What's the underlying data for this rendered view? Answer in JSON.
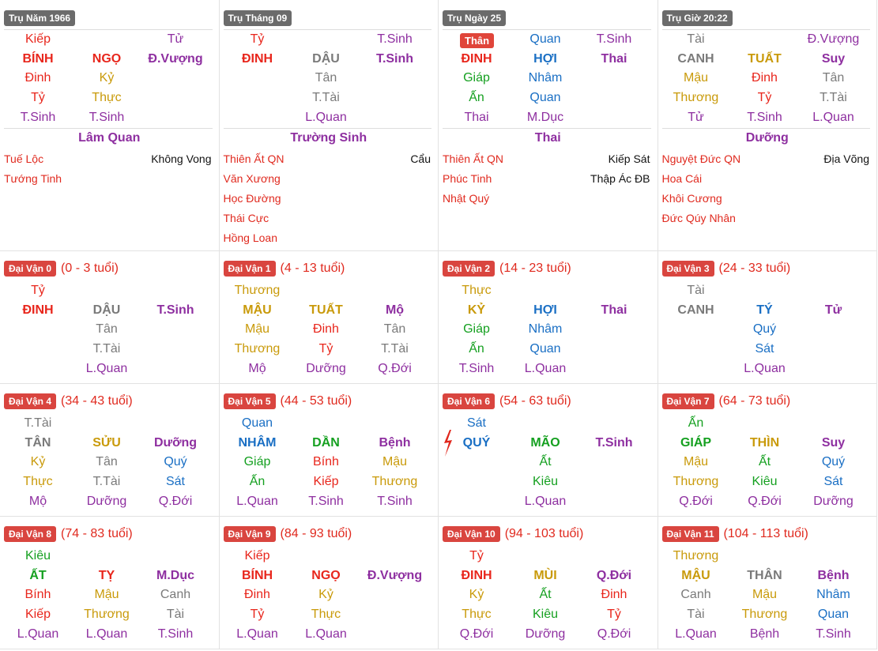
{
  "pillars": [
    {
      "badge": "Trụ Năm 1966",
      "rows": [
        [
          [
            "Kiếp",
            "#e8261c"
          ],
          null,
          [
            "Tử",
            "#8e2fa0"
          ]
        ],
        [
          [
            "BÍNH",
            "#e8261c"
          ],
          [
            "NGỌ",
            "#e8261c"
          ],
          [
            "Đ.Vượng",
            "#8e2fa0"
          ]
        ],
        [
          [
            "Đinh",
            "#e8261c"
          ],
          [
            "Kỷ",
            "#c99a0a"
          ],
          null
        ],
        [
          [
            "Tỷ",
            "#e8261c"
          ],
          [
            "Thực",
            "#c99a0a"
          ],
          null
        ],
        [
          [
            "T.Sinh",
            "#8e2fa0"
          ],
          [
            "T.Sinh",
            "#8e2fa0"
          ],
          null
        ]
      ],
      "center": "Lâm Quan",
      "stars_left": [
        "Tuế Lộc",
        "Tướng Tinh"
      ],
      "stars_right": [
        "Không Vong"
      ]
    },
    {
      "badge": "Trụ Tháng 09",
      "rows": [
        [
          [
            "Tỷ",
            "#e8261c"
          ],
          null,
          [
            "T.Sinh",
            "#8e2fa0"
          ]
        ],
        [
          [
            "ĐINH",
            "#e8261c"
          ],
          [
            "DẬU",
            "#7a7a7a"
          ],
          [
            "T.Sinh",
            "#8e2fa0"
          ]
        ],
        [
          null,
          [
            "Tân",
            "#7a7a7a"
          ],
          null
        ],
        [
          null,
          [
            "T.Tài",
            "#7a7a7a"
          ],
          null
        ],
        [
          null,
          [
            "L.Quan",
            "#8e2fa0"
          ],
          null
        ]
      ],
      "center": "Trường Sinh",
      "stars_left": [
        "Thiên Ất QN",
        "Văn Xương",
        "Học Đường",
        "Thái Cực",
        "Hồng Loan"
      ],
      "stars_right": [
        "Cẩu"
      ]
    },
    {
      "badge": "Trụ Ngày 25",
      "day_badge": "Thân",
      "rows": [
        [
          null,
          [
            "Quan",
            "#1a6fc4"
          ],
          [
            "T.Sinh",
            "#8e2fa0"
          ]
        ],
        [
          [
            "ĐINH",
            "#e8261c"
          ],
          [
            "HỢI",
            "#1a6fc4"
          ],
          [
            "Thai",
            "#8e2fa0"
          ]
        ],
        [
          [
            "Giáp",
            "#15a020"
          ],
          [
            "Nhâm",
            "#1a6fc4"
          ],
          null
        ],
        [
          [
            "Ấn",
            "#15a020"
          ],
          [
            "Quan",
            "#1a6fc4"
          ],
          null
        ],
        [
          [
            "Thai",
            "#8e2fa0"
          ],
          [
            "M.Dục",
            "#8e2fa0"
          ],
          null
        ]
      ],
      "center": "Thai",
      "stars_left": [
        "Thiên Ất QN",
        "Phúc Tinh",
        "Nhật Quý"
      ],
      "stars_right": [
        "Kiếp Sát",
        "Thập Ác ĐB"
      ]
    },
    {
      "badge": "Trụ Giờ 20:22",
      "rows": [
        [
          [
            "Tài",
            "#7a7a7a"
          ],
          null,
          [
            "Đ.Vượng",
            "#8e2fa0"
          ]
        ],
        [
          [
            "CANH",
            "#7a7a7a"
          ],
          [
            "TUẤT",
            "#c99a0a"
          ],
          [
            "Suy",
            "#8e2fa0"
          ]
        ],
        [
          [
            "Mậu",
            "#c99a0a"
          ],
          [
            "Đinh",
            "#e8261c"
          ],
          [
            "Tân",
            "#7a7a7a"
          ]
        ],
        [
          [
            "Thương",
            "#c99a0a"
          ],
          [
            "Tỷ",
            "#e8261c"
          ],
          [
            "T.Tài",
            "#7a7a7a"
          ]
        ],
        [
          [
            "Tử",
            "#8e2fa0"
          ],
          [
            "T.Sinh",
            "#8e2fa0"
          ],
          [
            "L.Quan",
            "#8e2fa0"
          ]
        ]
      ],
      "center": "Dưỡng",
      "stars_left": [
        "Nguyệt Đức QN",
        "Hoa Cái",
        "Khôi Cương",
        "Đức Qúy Nhân"
      ],
      "stars_right": [
        "Địa Võng"
      ]
    }
  ],
  "dai_van": [
    {
      "badge": "Đại Vận 0",
      "age": "(0 - 3 tuổi)",
      "rows": [
        [
          [
            "Tỷ",
            "#e8261c"
          ],
          null,
          null
        ],
        [
          [
            "ĐINH",
            "#e8261c"
          ],
          [
            "DẬU",
            "#7a7a7a"
          ],
          [
            "T.Sinh",
            "#8e2fa0"
          ]
        ],
        [
          null,
          [
            "Tân",
            "#7a7a7a"
          ],
          null
        ],
        [
          null,
          [
            "T.Tài",
            "#7a7a7a"
          ],
          null
        ],
        [
          null,
          [
            "L.Quan",
            "#8e2fa0"
          ],
          null
        ]
      ]
    },
    {
      "badge": "Đại Vận 1",
      "age": "(4 - 13 tuổi)",
      "rows": [
        [
          [
            "Thương",
            "#c99a0a"
          ],
          null,
          null
        ],
        [
          [
            "MẬU",
            "#c99a0a"
          ],
          [
            "TUẤT",
            "#c99a0a"
          ],
          [
            "Mộ",
            "#8e2fa0"
          ]
        ],
        [
          [
            "Mậu",
            "#c99a0a"
          ],
          [
            "Đinh",
            "#e8261c"
          ],
          [
            "Tân",
            "#7a7a7a"
          ]
        ],
        [
          [
            "Thương",
            "#c99a0a"
          ],
          [
            "Tỷ",
            "#e8261c"
          ],
          [
            "T.Tài",
            "#7a7a7a"
          ]
        ],
        [
          [
            "Mộ",
            "#8e2fa0"
          ],
          [
            "Dưỡng",
            "#8e2fa0"
          ],
          [
            "Q.Đới",
            "#8e2fa0"
          ]
        ]
      ]
    },
    {
      "badge": "Đại Vận 2",
      "age": "(14 - 23 tuổi)",
      "rows": [
        [
          [
            "Thực",
            "#c99a0a"
          ],
          null,
          null
        ],
        [
          [
            "KỶ",
            "#c99a0a"
          ],
          [
            "HỢI",
            "#1a6fc4"
          ],
          [
            "Thai",
            "#8e2fa0"
          ]
        ],
        [
          [
            "Giáp",
            "#15a020"
          ],
          [
            "Nhâm",
            "#1a6fc4"
          ],
          null
        ],
        [
          [
            "Ấn",
            "#15a020"
          ],
          [
            "Quan",
            "#1a6fc4"
          ],
          null
        ],
        [
          [
            "T.Sinh",
            "#8e2fa0"
          ],
          [
            "L.Quan",
            "#8e2fa0"
          ],
          null
        ]
      ]
    },
    {
      "badge": "Đại Vận 3",
      "age": "(24 - 33 tuổi)",
      "rows": [
        [
          [
            "Tài",
            "#7a7a7a"
          ],
          null,
          null
        ],
        [
          [
            "CANH",
            "#7a7a7a"
          ],
          [
            "TÝ",
            "#1a6fc4"
          ],
          [
            "Tử",
            "#8e2fa0"
          ]
        ],
        [
          null,
          [
            "Quý",
            "#1a6fc4"
          ],
          null
        ],
        [
          null,
          [
            "Sát",
            "#1a6fc4"
          ],
          null
        ],
        [
          null,
          [
            "L.Quan",
            "#8e2fa0"
          ],
          null
        ]
      ]
    },
    {
      "badge": "Đại Vận 4",
      "age": "(34 - 43 tuổi)",
      "rows": [
        [
          [
            "T.Tài",
            "#7a7a7a"
          ],
          null,
          null
        ],
        [
          [
            "TÂN",
            "#7a7a7a"
          ],
          [
            "SỬU",
            "#c99a0a"
          ],
          [
            "Dưỡng",
            "#8e2fa0"
          ]
        ],
        [
          [
            "Kỷ",
            "#c99a0a"
          ],
          [
            "Tân",
            "#7a7a7a"
          ],
          [
            "Quý",
            "#1a6fc4"
          ]
        ],
        [
          [
            "Thực",
            "#c99a0a"
          ],
          [
            "T.Tài",
            "#7a7a7a"
          ],
          [
            "Sát",
            "#1a6fc4"
          ]
        ],
        [
          [
            "Mộ",
            "#8e2fa0"
          ],
          [
            "Dưỡng",
            "#8e2fa0"
          ],
          [
            "Q.Đới",
            "#8e2fa0"
          ]
        ]
      ]
    },
    {
      "badge": "Đại Vận 5",
      "age": "(44 - 53 tuổi)",
      "rows": [
        [
          [
            "Quan",
            "#1a6fc4"
          ],
          null,
          null
        ],
        [
          [
            "NHÂM",
            "#1a6fc4"
          ],
          [
            "DẦN",
            "#15a020"
          ],
          [
            "Bệnh",
            "#8e2fa0"
          ]
        ],
        [
          [
            "Giáp",
            "#15a020"
          ],
          [
            "Bính",
            "#e8261c"
          ],
          [
            "Mậu",
            "#c99a0a"
          ]
        ],
        [
          [
            "Ấn",
            "#15a020"
          ],
          [
            "Kiếp",
            "#e8261c"
          ],
          [
            "Thương",
            "#c99a0a"
          ]
        ],
        [
          [
            "L.Quan",
            "#8e2fa0"
          ],
          [
            "T.Sinh",
            "#8e2fa0"
          ],
          [
            "T.Sinh",
            "#8e2fa0"
          ]
        ]
      ]
    },
    {
      "badge": "Đại Vận 6",
      "age": "(54 - 63 tuổi)",
      "rows": [
        [
          [
            "Sát",
            "#1a6fc4"
          ],
          null,
          null
        ],
        [
          [
            "QUÝ",
            "#1a6fc4"
          ],
          [
            "MÃO",
            "#15a020"
          ],
          [
            "T.Sinh",
            "#8e2fa0"
          ]
        ],
        [
          null,
          [
            "Ất",
            "#15a020"
          ],
          null
        ],
        [
          null,
          [
            "Kiêu",
            "#15a020"
          ],
          null
        ],
        [
          null,
          [
            "L.Quan",
            "#8e2fa0"
          ],
          null
        ]
      ]
    },
    {
      "badge": "Đại Vận 7",
      "age": "(64 - 73 tuổi)",
      "rows": [
        [
          [
            "Ấn",
            "#15a020"
          ],
          null,
          null
        ],
        [
          [
            "GIÁP",
            "#15a020"
          ],
          [
            "THÌN",
            "#c99a0a"
          ],
          [
            "Suy",
            "#8e2fa0"
          ]
        ],
        [
          [
            "Mậu",
            "#c99a0a"
          ],
          [
            "Ất",
            "#15a020"
          ],
          [
            "Quý",
            "#1a6fc4"
          ]
        ],
        [
          [
            "Thương",
            "#c99a0a"
          ],
          [
            "Kiêu",
            "#15a020"
          ],
          [
            "Sát",
            "#1a6fc4"
          ]
        ],
        [
          [
            "Q.Đới",
            "#8e2fa0"
          ],
          [
            "Q.Đới",
            "#8e2fa0"
          ],
          [
            "Dưỡng",
            "#8e2fa0"
          ]
        ]
      ]
    },
    {
      "badge": "Đại Vận 8",
      "age": "(74 - 83 tuổi)",
      "rows": [
        [
          [
            "Kiêu",
            "#15a020"
          ],
          null,
          null
        ],
        [
          [
            "ẤT",
            "#15a020"
          ],
          [
            "TỴ",
            "#e8261c"
          ],
          [
            "M.Dục",
            "#8e2fa0"
          ]
        ],
        [
          [
            "Bính",
            "#e8261c"
          ],
          [
            "Mậu",
            "#c99a0a"
          ],
          [
            "Canh",
            "#7a7a7a"
          ]
        ],
        [
          [
            "Kiếp",
            "#e8261c"
          ],
          [
            "Thương",
            "#c99a0a"
          ],
          [
            "Tài",
            "#7a7a7a"
          ]
        ],
        [
          [
            "L.Quan",
            "#8e2fa0"
          ],
          [
            "L.Quan",
            "#8e2fa0"
          ],
          [
            "T.Sinh",
            "#8e2fa0"
          ]
        ]
      ]
    },
    {
      "badge": "Đại Vận 9",
      "age": "(84 - 93 tuổi)",
      "rows": [
        [
          [
            "Kiếp",
            "#e8261c"
          ],
          null,
          null
        ],
        [
          [
            "BÍNH",
            "#e8261c"
          ],
          [
            "NGỌ",
            "#e8261c"
          ],
          [
            "Đ.Vượng",
            "#8e2fa0"
          ]
        ],
        [
          [
            "Đinh",
            "#e8261c"
          ],
          [
            "Kỷ",
            "#c99a0a"
          ],
          null
        ],
        [
          [
            "Tỷ",
            "#e8261c"
          ],
          [
            "Thực",
            "#c99a0a"
          ],
          null
        ],
        [
          [
            "L.Quan",
            "#8e2fa0"
          ],
          [
            "L.Quan",
            "#8e2fa0"
          ],
          null
        ]
      ]
    },
    {
      "badge": "Đại Vận 10",
      "age": "(94 - 103 tuổi)",
      "rows": [
        [
          [
            "Tỷ",
            "#e8261c"
          ],
          null,
          null
        ],
        [
          [
            "ĐINH",
            "#e8261c"
          ],
          [
            "MÙI",
            "#c99a0a"
          ],
          [
            "Q.Đới",
            "#8e2fa0"
          ]
        ],
        [
          [
            "Kỷ",
            "#c99a0a"
          ],
          [
            "Ất",
            "#15a020"
          ],
          [
            "Đinh",
            "#e8261c"
          ]
        ],
        [
          [
            "Thực",
            "#c99a0a"
          ],
          [
            "Kiêu",
            "#15a020"
          ],
          [
            "Tỷ",
            "#e8261c"
          ]
        ],
        [
          [
            "Q.Đới",
            "#8e2fa0"
          ],
          [
            "Dưỡng",
            "#8e2fa0"
          ],
          [
            "Q.Đới",
            "#8e2fa0"
          ]
        ]
      ]
    },
    {
      "badge": "Đại Vận 11",
      "age": "(104 - 113 tuổi)",
      "rows": [
        [
          [
            "Thương",
            "#c99a0a"
          ],
          null,
          null
        ],
        [
          [
            "MẬU",
            "#c99a0a"
          ],
          [
            "THÂN",
            "#7a7a7a"
          ],
          [
            "Bệnh",
            "#8e2fa0"
          ]
        ],
        [
          [
            "Canh",
            "#7a7a7a"
          ],
          [
            "Mậu",
            "#c99a0a"
          ],
          [
            "Nhâm",
            "#1a6fc4"
          ]
        ],
        [
          [
            "Tài",
            "#7a7a7a"
          ],
          [
            "Thương",
            "#c99a0a"
          ],
          [
            "Quan",
            "#1a6fc4"
          ]
        ],
        [
          [
            "L.Quan",
            "#8e2fa0"
          ],
          [
            "Bệnh",
            "#8e2fa0"
          ],
          [
            "T.Sinh",
            "#8e2fa0"
          ]
        ]
      ]
    }
  ]
}
